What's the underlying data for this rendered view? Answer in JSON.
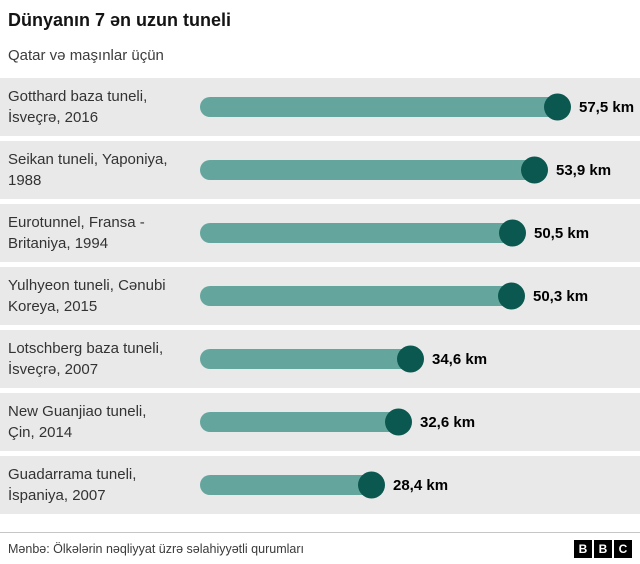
{
  "header": {
    "title": "Dünyanın 7 ən uzun tuneli",
    "subtitle": "Qatar və maşınlar üçün"
  },
  "chart_data": {
    "type": "bar",
    "orientation": "horizontal",
    "title": "Dünyanın 7 ən uzun tuneli",
    "subtitle": "Qatar və maşınlar üçün",
    "unit": "km",
    "xlim": [
      0,
      57.5
    ],
    "grid": false,
    "legend": "none",
    "bar_color": "#64a69d",
    "cap_color": "#0a584f",
    "categories": [
      "Gotthard baza tuneli, İsveçrə, 2016",
      "Seikan tuneli, Yaponiya, 1988",
      "Eurotunnel, Fransa - Britaniya, 1994",
      "Yulhyeon tuneli, Cənubi Koreya, 2015",
      "Lotschberg baza tuneli, İsveçrə, 2007",
      "New Guanjiao tuneli, Çin, 2014",
      "Guadarrama tuneli, İspaniya, 2007"
    ],
    "values": [
      57.5,
      53.9,
      50.5,
      50.3,
      34.6,
      32.6,
      28.4
    ],
    "rows": [
      {
        "label_lines": [
          "Gotthard baza tuneli,",
          "İsveçrə, 2016"
        ],
        "value": 57.5,
        "value_label": "57,5 km"
      },
      {
        "label_lines": [
          "Seikan tuneli, Yaponiya,",
          "1988"
        ],
        "value": 53.9,
        "value_label": "53,9 km"
      },
      {
        "label_lines": [
          "Eurotunnel, Fransa -",
          "Britaniya, 1994"
        ],
        "value": 50.5,
        "value_label": "50,5 km"
      },
      {
        "label_lines": [
          "Yulhyeon tuneli, Cənubi",
          "Koreya, 2015"
        ],
        "value": 50.3,
        "value_label": "50,3 km"
      },
      {
        "label_lines": [
          "Lotschberg baza tuneli,",
          "İsveçrə, 2007"
        ],
        "value": 34.6,
        "value_label": "34,6 km"
      },
      {
        "label_lines": [
          "New Guanjiao tuneli,",
          "Çin, 2014"
        ],
        "value": 32.6,
        "value_label": "32,6 km"
      },
      {
        "label_lines": [
          "Guadarrama tuneli,",
          "İspaniya, 2007"
        ],
        "value": 28.4,
        "value_label": "28,4 km"
      }
    ]
  },
  "footer": {
    "source": "Mənbə: Ölkələrin nəqliyyat üzrə səlahiyyətli qurumları",
    "logo_blocks": [
      "B",
      "B",
      "C"
    ]
  }
}
